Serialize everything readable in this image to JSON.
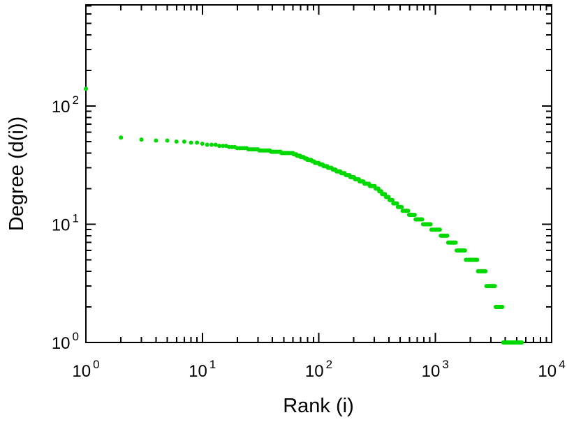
{
  "chart_data": {
    "type": "scatter",
    "title": "",
    "xlabel": "Rank (i)",
    "ylabel": "Degree (d(i))",
    "xscale": "log",
    "yscale": "log",
    "xlim": [
      1,
      10000
    ],
    "ylim": [
      1,
      716
    ],
    "x_tick_exponents": [
      0,
      1,
      2,
      3,
      4
    ],
    "y_tick_exponents": [
      0,
      1,
      2
    ],
    "grid": false,
    "legend": null,
    "marker_color": "#00d900",
    "marker_radius": 3,
    "axis_color": "#000000",
    "background_color": "#ffffff",
    "samples_per_decade": 125,
    "degree_rank_steps_note": "each entry is [degree, max_rank_with_that_degree]; degree is constant from previous max_rank+1 up to max_rank",
    "degree_rank_steps": [
      [
        140,
        1
      ],
      [
        54,
        2
      ],
      [
        52,
        3
      ],
      [
        51,
        5
      ],
      [
        50,
        7
      ],
      [
        49,
        9
      ],
      [
        48,
        10
      ],
      [
        47,
        13
      ],
      [
        46,
        16
      ],
      [
        45,
        19
      ],
      [
        44,
        24
      ],
      [
        43,
        30
      ],
      [
        42,
        38
      ],
      [
        41,
        47
      ],
      [
        40,
        60
      ],
      [
        39,
        64
      ],
      [
        38,
        69
      ],
      [
        37,
        74
      ],
      [
        36,
        79
      ],
      [
        35,
        86
      ],
      [
        34,
        92
      ],
      [
        33,
        100
      ],
      [
        32,
        109
      ],
      [
        31,
        118
      ],
      [
        30,
        129
      ],
      [
        29,
        141
      ],
      [
        28,
        155
      ],
      [
        27,
        169
      ],
      [
        26,
        184
      ],
      [
        25,
        202
      ],
      [
        24,
        223
      ],
      [
        23,
        246
      ],
      [
        22,
        273
      ],
      [
        21,
        305
      ],
      [
        20,
        325
      ],
      [
        19,
        348
      ],
      [
        18,
        374
      ],
      [
        17,
        403
      ],
      [
        16,
        436
      ],
      [
        15,
        475
      ],
      [
        14,
        520
      ],
      [
        13,
        590
      ],
      [
        12,
        675
      ],
      [
        11,
        782
      ],
      [
        10,
        919
      ],
      [
        9,
        1100
      ],
      [
        8,
        1275
      ],
      [
        7,
        1508
      ],
      [
        6,
        1830
      ],
      [
        5,
        2300
      ],
      [
        4,
        2750
      ],
      [
        3,
        3300
      ],
      [
        2,
        3800
      ],
      [
        1,
        5600
      ]
    ]
  }
}
